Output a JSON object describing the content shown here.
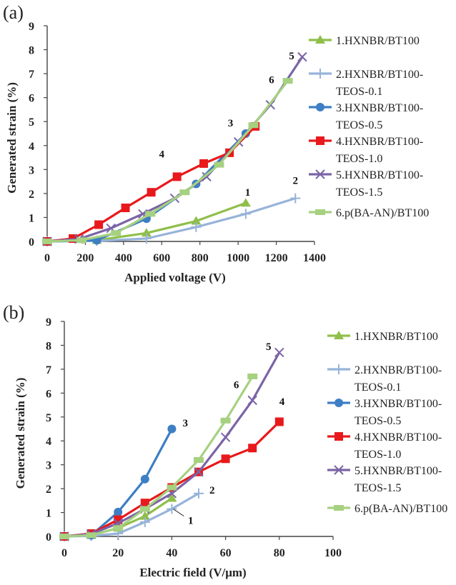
{
  "colors": {
    "s1": "#8fbf4a",
    "s2": "#97b3da",
    "s3": "#3d7ec4",
    "s4": "#e8191c",
    "s5": "#7b64a6",
    "s6": "#a6d180"
  },
  "legend": [
    [
      "1.HXNBR/BT100"
    ],
    [
      "2.HXNBR/BT100-",
      "TEOS-0.1"
    ],
    [
      "3.HXNBR/BT100-",
      "TEOS-0.5"
    ],
    [
      "4.HXNBR/BT100-",
      "TEOS-1.0"
    ],
    [
      "5.HXNBR/BT100-",
      "TEOS-1.5"
    ],
    [
      "6.p(BA-AN)/BT100"
    ]
  ],
  "chart_data": [
    {
      "panel": "(a)",
      "type": "line",
      "xlabel": "Applied voltage (V)",
      "ylabel": "Generated strain (%)",
      "xlim": [
        0,
        1400
      ],
      "ylim": [
        0,
        9
      ],
      "xticks": [
        0,
        200,
        400,
        600,
        800,
        1000,
        1200,
        1400
      ],
      "yticks": [
        0,
        1,
        2,
        3,
        4,
        5,
        6,
        7,
        8,
        9
      ],
      "series": [
        {
          "id": "s1",
          "name": "1.HXNBR/BT100",
          "marker": "triangle",
          "label": "1",
          "label_at": [
            1050,
            1.9
          ],
          "x": [
            0,
            260,
            520,
            780,
            1040
          ],
          "y": [
            0,
            0.05,
            0.35,
            0.85,
            1.6
          ]
        },
        {
          "id": "s2",
          "name": "2.HXNBR/BT100-TEOS-0.1",
          "marker": "plus",
          "label": "2",
          "label_at": [
            1300,
            2.4
          ],
          "x": [
            0,
            260,
            520,
            780,
            1040,
            1300
          ],
          "y": [
            0,
            0.02,
            0.12,
            0.6,
            1.15,
            1.8
          ]
        },
        {
          "id": "s3",
          "name": "3.HXNBR/BT100-TEOS-0.5",
          "marker": "circle",
          "label": "3",
          "label_at": [
            960,
            4.8
          ],
          "x": [
            0,
            260,
            520,
            780,
            1040
          ],
          "y": [
            0,
            0.05,
            0.95,
            2.4,
            4.5
          ]
        },
        {
          "id": "s4",
          "name": "4.HXNBR/BT100-TEOS-1.0",
          "marker": "square",
          "label": "4",
          "label_at": [
            600,
            3.5
          ],
          "x": [
            0,
            135,
            270,
            410,
            545,
            680,
            820,
            955,
            1090
          ],
          "y": [
            0,
            0.12,
            0.7,
            1.4,
            2.05,
            2.7,
            3.25,
            3.7,
            4.8
          ]
        },
        {
          "id": "s5",
          "name": "5.HXNBR/BT100-TEOS-1.5",
          "marker": "x",
          "label": "5",
          "label_at": [
            1280,
            7.6
          ],
          "x": [
            0,
            167,
            334,
            501,
            668,
            835,
            1002,
            1169,
            1336
          ],
          "y": [
            0,
            0.1,
            0.55,
            1.15,
            1.8,
            2.7,
            4.15,
            5.7,
            7.7
          ]
        },
        {
          "id": "s6",
          "name": "6.p(BA-AN)/BT100",
          "marker": "dash",
          "label": "6",
          "label_at": [
            1175,
            6.6
          ],
          "x": [
            0,
            180,
            360,
            540,
            720,
            900,
            1080,
            1260
          ],
          "y": [
            0,
            0.05,
            0.35,
            1.15,
            2.05,
            3.2,
            4.85,
            6.7
          ]
        }
      ]
    },
    {
      "panel": "(b)",
      "type": "line",
      "xlabel": "Electric field (V/μm)",
      "ylabel": "Generated strain (%)",
      "xlim": [
        0,
        100
      ],
      "ylim": [
        0,
        9
      ],
      "xticks": [
        0,
        20,
        40,
        60,
        80,
        100
      ],
      "yticks": [
        0,
        1,
        2,
        3,
        4,
        5,
        6,
        7,
        8,
        9
      ],
      "series": [
        {
          "id": "s1",
          "name": "1.HXNBR/BT100",
          "marker": "triangle",
          "label": "",
          "label_at": null,
          "x": [
            0,
            10,
            20,
            30,
            40
          ],
          "y": [
            0,
            0.05,
            0.35,
            0.85,
            1.6
          ]
        },
        {
          "id": "s2",
          "name": "2.HXNBR/BT100-TEOS-0.1",
          "marker": "plus",
          "label": "2",
          "label_at": [
            55,
            1.8
          ],
          "x": [
            0,
            10,
            20,
            30,
            40,
            50
          ],
          "y": [
            0,
            0.02,
            0.12,
            0.6,
            1.15,
            1.8
          ]
        },
        {
          "id": "s3",
          "name": "3.HXNBR/BT100-TEOS-0.5",
          "marker": "circle",
          "label": "3",
          "label_at": [
            45,
            4.6
          ],
          "x": [
            0,
            10,
            20,
            30,
            40
          ],
          "y": [
            0,
            0.05,
            1.02,
            2.4,
            4.5
          ]
        },
        {
          "id": "s4",
          "name": "4.HXNBR/BT100-TEOS-1.0",
          "marker": "square",
          "label": "4",
          "label_at": [
            81,
            5.5
          ],
          "x": [
            0,
            10,
            20,
            30,
            40,
            50,
            60,
            70,
            80
          ],
          "y": [
            0,
            0.12,
            0.7,
            1.4,
            2.05,
            2.7,
            3.25,
            3.7,
            4.8
          ]
        },
        {
          "id": "s5",
          "name": "5.HXNBR/BT100-TEOS-1.5",
          "marker": "x",
          "label": "5",
          "label_at": [
            76,
            7.8
          ],
          "x": [
            0,
            10,
            20,
            30,
            40,
            50,
            60,
            70,
            80
          ],
          "y": [
            0,
            0.1,
            0.55,
            1.15,
            1.8,
            2.7,
            4.15,
            5.7,
            7.7
          ]
        },
        {
          "id": "s6",
          "name": "6.p(BA-AN)/BT100",
          "marker": "dash",
          "label": "6",
          "label_at": [
            64,
            6.2
          ],
          "x": [
            0,
            10,
            20,
            30,
            40,
            50,
            60,
            70
          ],
          "y": [
            0,
            0.05,
            0.35,
            1.15,
            2.05,
            3.2,
            4.85,
            6.7
          ]
        }
      ],
      "annotations": [
        {
          "text": "1",
          "at": [
            47,
            0.7
          ],
          "leader_from": [
            40.5,
            1.15
          ],
          "leader_to": [
            44.5,
            0.85
          ]
        }
      ]
    }
  ]
}
